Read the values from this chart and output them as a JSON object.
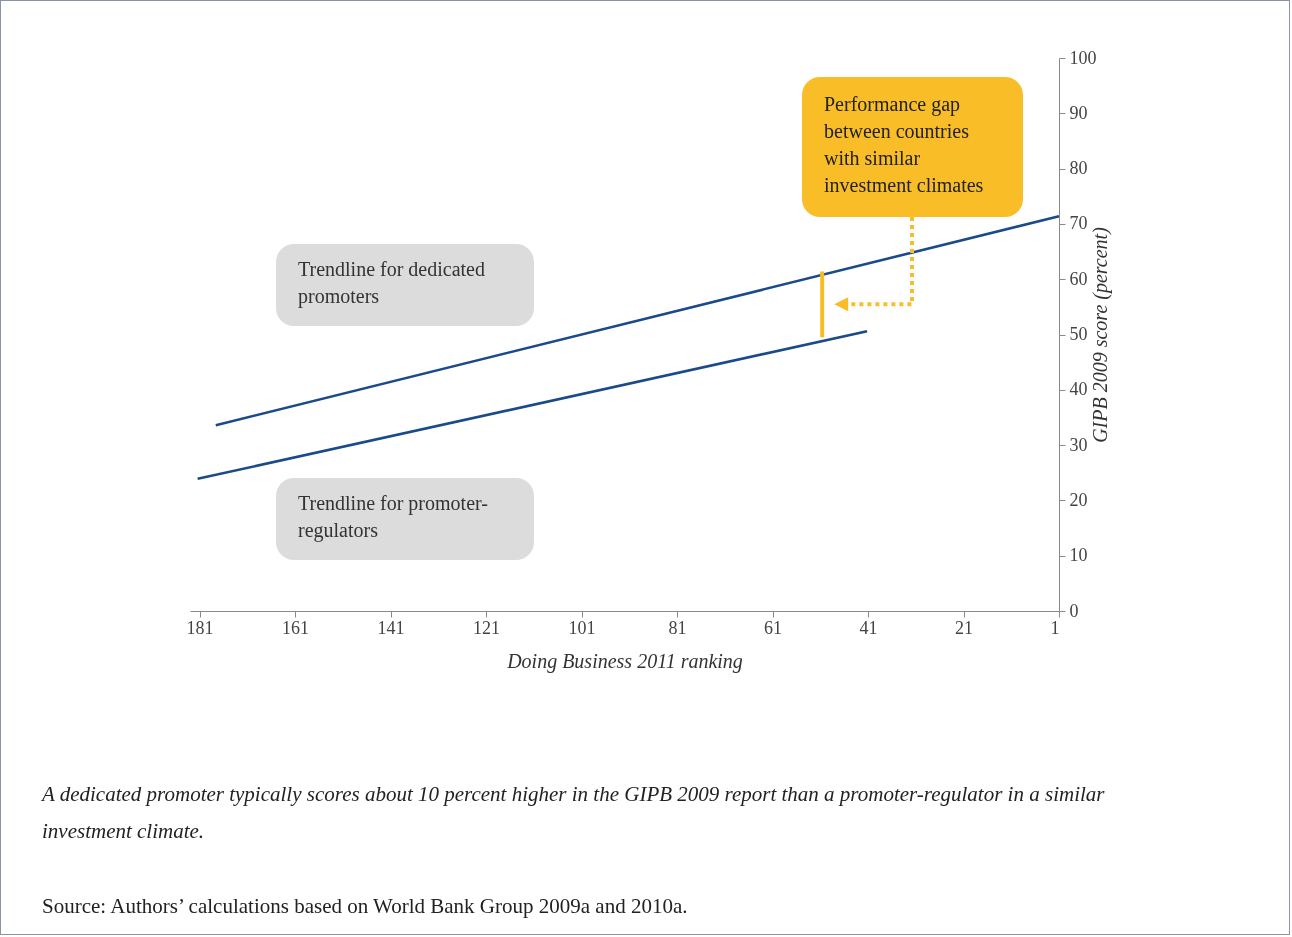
{
  "chart_data": {
    "type": "line",
    "xlabel": "Doing Business 2011 ranking",
    "ylabel": "GIPB 2009 score (percent)",
    "xlim": [
      183,
      1
    ],
    "xticks": [
      181,
      161,
      141,
      121,
      101,
      81,
      61,
      41,
      21,
      1
    ],
    "ylim": [
      0,
      100
    ],
    "yticks": [
      0,
      10,
      20,
      30,
      40,
      50,
      60,
      70,
      80,
      90,
      100
    ],
    "grid": false,
    "marker": "none",
    "line_style": "solid",
    "series": [
      {
        "name": "Trendline for dedicated promoters",
        "color": "#1b4a8a",
        "x": [
          177.6,
          1
        ],
        "values": [
          33.6,
          71.4
        ]
      },
      {
        "name": "Trendline for promoter-regulators",
        "color": "#1b4a8a",
        "x": [
          181.4,
          41.2
        ],
        "values": [
          23.9,
          50.6
        ]
      },
      {
        "color": "#f7bd22",
        "x": [
          50.6,
          50.6
        ],
        "values": [
          49.5,
          61.4
        ]
      }
    ],
    "annotations": [
      "Performance gap between countries with similar investment climates",
      "A dedicated promoter typically scores about 10 percent higher in the GIPB 2009 report than a promoter-regulator in a similar investment climate.",
      "Source: Authors’ calculations based on World Bank Group 2009a and 2010a."
    ]
  }
}
